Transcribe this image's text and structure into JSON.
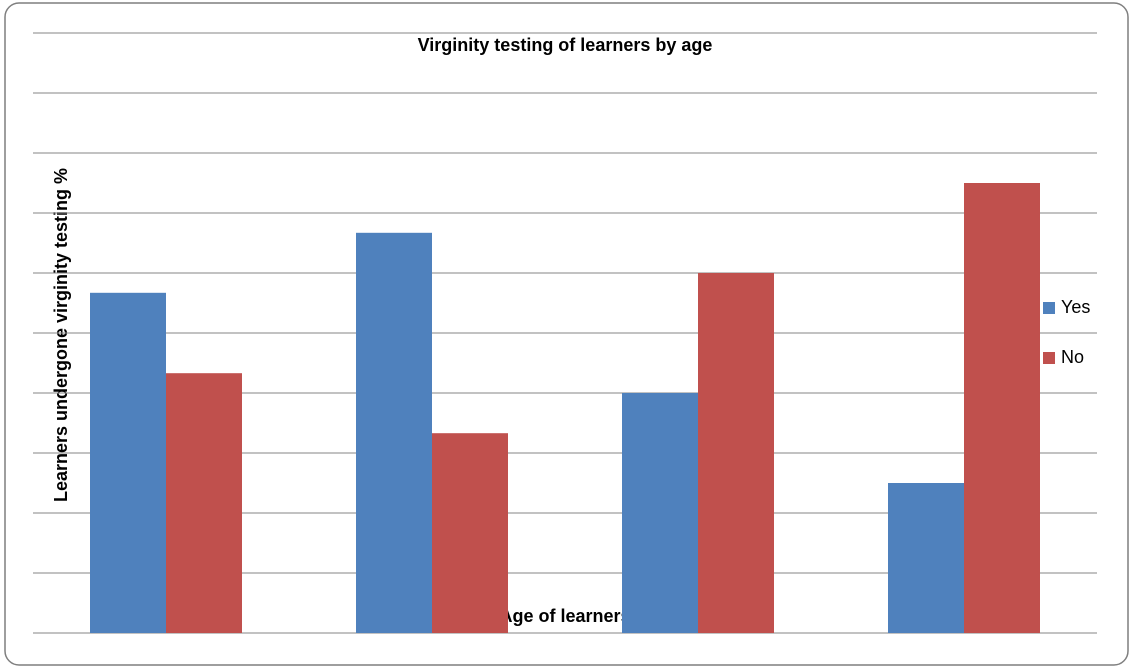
{
  "chart_data": {
    "type": "bar",
    "title": "Virginity testing of learners by age",
    "x_label": "Age of learners",
    "y_label": "Learners  undergone virginity testing %",
    "categories": [
      null,
      null,
      null,
      null
    ],
    "series": [
      {
        "name": "Yes",
        "color": "#4f81bd",
        "values": [
          56.7,
          66.7,
          40,
          25
        ]
      },
      {
        "name": "No",
        "color": "#c0504d",
        "values": [
          43.3,
          33.3,
          60,
          75
        ]
      }
    ],
    "ylim": [
      0,
      100
    ],
    "yticks": [
      0,
      10,
      20,
      30,
      40,
      50,
      60,
      70,
      80,
      90,
      100
    ],
    "grid": true,
    "legend": "right"
  }
}
